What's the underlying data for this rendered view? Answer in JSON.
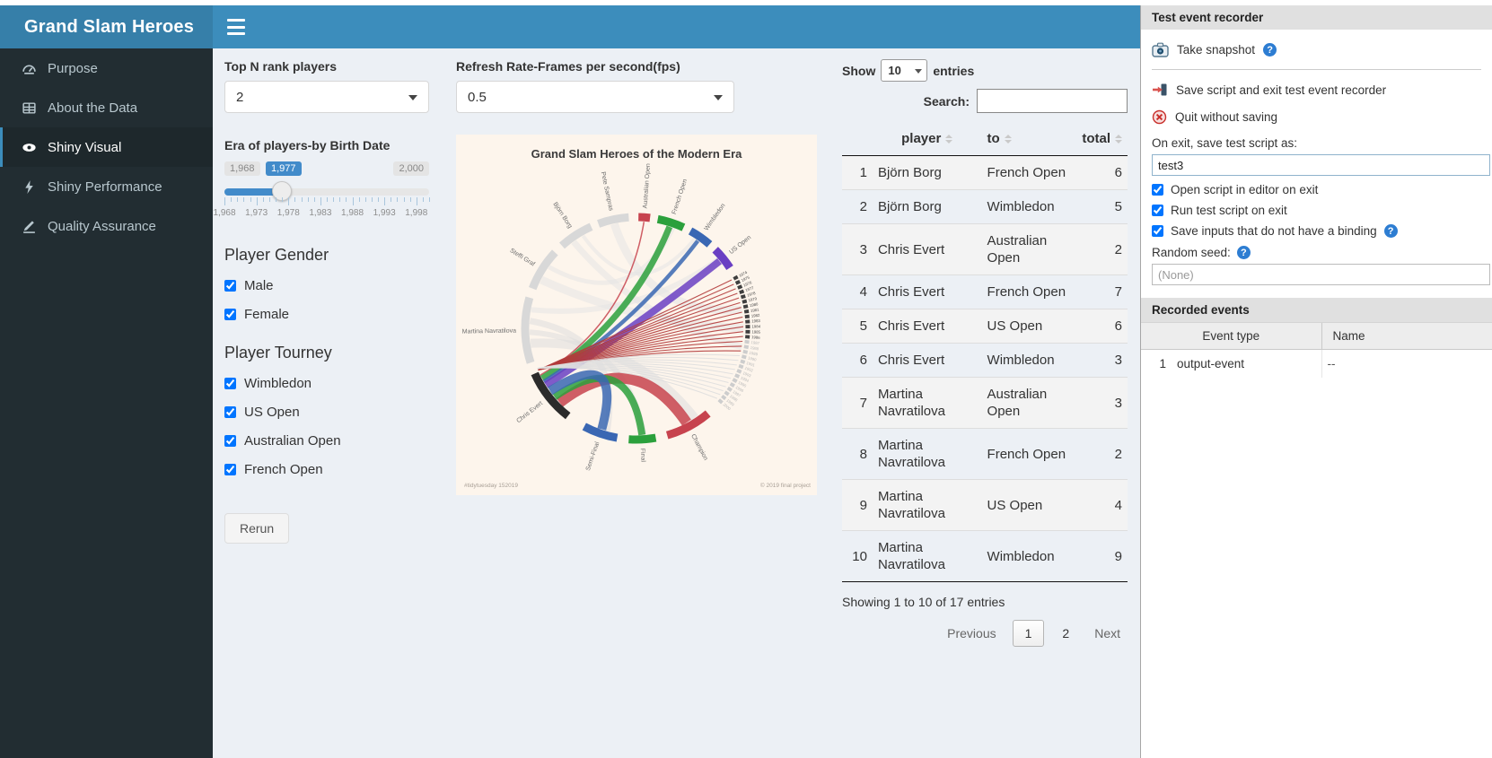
{
  "app": {
    "title": "Grand Slam Heroes"
  },
  "sidebar": {
    "items": [
      {
        "label": "Purpose"
      },
      {
        "label": "About the Data"
      },
      {
        "label": "Shiny Visual"
      },
      {
        "label": "Shiny Performance"
      },
      {
        "label": "Quality Assurance"
      }
    ]
  },
  "controls": {
    "top_n_label": "Top N rank players",
    "top_n_value": "2",
    "refresh_label": "Refresh Rate-Frames per second(fps)",
    "refresh_value": "0.5",
    "era": {
      "label": "Era of players-by Birth Date",
      "min_label": "1,968",
      "value_label": "1,977",
      "max_label": "2,000",
      "value_percent": 28,
      "ticks": [
        "1,968",
        "1,973",
        "1,978",
        "1,983",
        "1,988",
        "1,993",
        "1,998"
      ]
    },
    "gender_label": "Player Gender",
    "gender_options": [
      {
        "label": "Male",
        "checked": true
      },
      {
        "label": "Female",
        "checked": true
      }
    ],
    "tourney_label": "Player Tourney",
    "tourney_options": [
      {
        "label": "Wimbledon",
        "checked": true
      },
      {
        "label": "US Open",
        "checked": true
      },
      {
        "label": "Australian Open",
        "checked": true
      },
      {
        "label": "French Open",
        "checked": true
      }
    ],
    "rerun_label": "Rerun"
  },
  "table": {
    "show_label": "Show",
    "page_length": "10",
    "entries_label": "entries",
    "search_label": "Search:",
    "columns": {
      "player": "player",
      "to": "to",
      "total": "total"
    },
    "rows": [
      {
        "idx": 1,
        "player": "Björn Borg",
        "to": "French Open",
        "total": 6
      },
      {
        "idx": 2,
        "player": "Björn Borg",
        "to": "Wimbledon",
        "total": 5
      },
      {
        "idx": 3,
        "player": "Chris Evert",
        "to": "Australian Open",
        "total": 2
      },
      {
        "idx": 4,
        "player": "Chris Evert",
        "to": "French Open",
        "total": 7
      },
      {
        "idx": 5,
        "player": "Chris Evert",
        "to": "US Open",
        "total": 6
      },
      {
        "idx": 6,
        "player": "Chris Evert",
        "to": "Wimbledon",
        "total": 3
      },
      {
        "idx": 7,
        "player": "Martina Navratilova",
        "to": "Australian Open",
        "total": 3
      },
      {
        "idx": 8,
        "player": "Martina Navratilova",
        "to": "French Open",
        "total": 2
      },
      {
        "idx": 9,
        "player": "Martina Navratilova",
        "to": "US Open",
        "total": 4
      },
      {
        "idx": 10,
        "player": "Martina Navratilova",
        "to": "Wimbledon",
        "total": 9
      }
    ],
    "info": "Showing 1 to 10 of 17 entries",
    "pagination": {
      "previous": "Previous",
      "page1": "1",
      "page2": "2",
      "next": "Next"
    }
  },
  "recorder": {
    "title": "Test event recorder",
    "take_snapshot_label": "Take snapshot",
    "save_exit_label": "Save script and exit test event recorder",
    "quit_label": "Quit without saving",
    "save_as_label": "On exit, save test script as:",
    "script_name": "test3",
    "checkboxes": [
      {
        "label": "Open script in editor on exit",
        "checked": true
      },
      {
        "label": "Run test script on exit",
        "checked": true
      },
      {
        "label": "Save inputs that do not have a binding",
        "checked": true
      }
    ],
    "random_seed_label": "Random seed:",
    "random_seed_placeholder": "(None)",
    "events": {
      "title": "Recorded events",
      "col_event_type": "Event type",
      "col_name": "Name",
      "rows": [
        {
          "idx": "1",
          "type": "output-event",
          "name": "--"
        }
      ]
    }
  },
  "chart_data": {
    "type": "chord",
    "title": "Grand Slam Heroes of the Modern Era",
    "footnote_left": "#tidytuesday 152019",
    "footnote_right": "© 2019 final project",
    "background": "#fdf5ec",
    "segments": [
      {
        "label": "Australian Open",
        "start": 1,
        "end": 7,
        "color": "#c7434e"
      },
      {
        "label": "French Open",
        "start": 11,
        "end": 25,
        "color": "#2ba03c"
      },
      {
        "label": "Wimbledon",
        "start": 29,
        "end": 41,
        "color": "#3a67b3"
      },
      {
        "label": "US Open",
        "start": 45,
        "end": 57,
        "color": "#6a3fc3"
      },
      {
        "label": "Champion",
        "start": 140,
        "end": 164,
        "color": "#c7434e"
      },
      {
        "label": "Final",
        "start": 170,
        "end": 184,
        "color": "#2ba03c"
      },
      {
        "label": "Semi-Final",
        "start": 190,
        "end": 208,
        "color": "#3a67b3"
      },
      {
        "label": "Chris Evert",
        "start": 218,
        "end": 246,
        "color": "#2b2b2b"
      },
      {
        "label": "Martina Navratilova",
        "start": 252,
        "end": 286,
        "color": "#d8d8d8"
      },
      {
        "label": "Steffi Graf",
        "start": 291,
        "end": 313,
        "color": "#d8d8d8"
      },
      {
        "label": "Björn Borg",
        "start": 318,
        "end": 336,
        "color": "#d8d8d8"
      },
      {
        "label": "Pete Sampras",
        "start": 340,
        "end": 356,
        "color": "#d8d8d8"
      }
    ],
    "years": {
      "start": 63,
      "end": 131,
      "first": 1974,
      "last": 2000,
      "dark_until": 1986
    },
    "year_ribbons": [
      {
        "source": 247,
        "from": 1974,
        "to": 1989,
        "color": "#b23b3b",
        "width": 1.1
      },
      {
        "source": 248,
        "from": 1990,
        "to": 2000,
        "color": "#dedede",
        "width": 1
      }
    ],
    "ribbons": [
      {
        "from": 244,
        "to": 4,
        "width": 1.5,
        "color": "#c7434e"
      },
      {
        "from": 242,
        "to": 18,
        "width": 7,
        "color": "#2ba03c"
      },
      {
        "from": 240,
        "to": 35,
        "width": 4.5,
        "color": "#3a67b3"
      },
      {
        "from": 238,
        "to": 51,
        "width": 8,
        "color": "#6a3fc3"
      },
      {
        "from": 226,
        "to": 152,
        "width": 12,
        "color": "#c7434e"
      },
      {
        "from": 230,
        "to": 177,
        "width": 8,
        "color": "#2ba03c"
      },
      {
        "from": 234,
        "to": 199,
        "width": 10,
        "color": "#3a67b3"
      }
    ],
    "background_ribbons": [
      {
        "from": 262,
        "to": 147,
        "width": 10,
        "color": "#dcdcdc"
      },
      {
        "from": 268,
        "to": 176,
        "width": 6,
        "color": "#dcdcdc"
      },
      {
        "from": 274,
        "to": 196,
        "width": 7,
        "color": "#dcdcdc"
      },
      {
        "from": 297,
        "to": 90,
        "width": 9,
        "color": "#e3e3e3"
      },
      {
        "from": 305,
        "to": 20,
        "width": 5,
        "color": "#e3e3e3"
      },
      {
        "from": 324,
        "to": 100,
        "width": 7,
        "color": "#e3e3e3"
      },
      {
        "from": 348,
        "to": 80,
        "width": 9,
        "color": "#e3e3e3"
      },
      {
        "from": 280,
        "to": 50,
        "width": 6,
        "color": "#e3e3e3"
      },
      {
        "from": 330,
        "to": 33,
        "width": 4,
        "color": "#e3e3e3"
      }
    ]
  }
}
